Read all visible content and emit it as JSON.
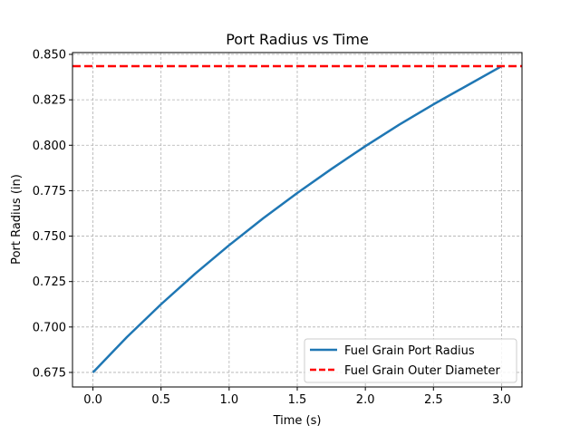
{
  "chart_data": {
    "type": "line",
    "title": "Port Radius vs Time",
    "xlabel": "Time (s)",
    "ylabel": "Port Radius (in)",
    "xlim": [
      -0.15,
      3.15
    ],
    "ylim": [
      0.667,
      0.851
    ],
    "xticks": [
      "0.0",
      "0.5",
      "1.0",
      "1.5",
      "2.0",
      "2.5",
      "3.0"
    ],
    "yticks": [
      "0.675",
      "0.700",
      "0.725",
      "0.750",
      "0.775",
      "0.800",
      "0.825",
      "0.850"
    ],
    "grid": true,
    "legend_position": "lower-right",
    "series": [
      {
        "name": "Fuel Grain Port Radius",
        "style": "solid",
        "color": "#1f77b4",
        "x": [
          0.0,
          0.25,
          0.5,
          0.75,
          1.0,
          1.25,
          1.5,
          1.75,
          2.0,
          2.25,
          2.5,
          2.75,
          3.0
        ],
        "y": [
          0.675,
          0.6945,
          0.7125,
          0.7293,
          0.745,
          0.7598,
          0.7737,
          0.7869,
          0.7995,
          0.8114,
          0.8225,
          0.833,
          0.8435
        ]
      },
      {
        "name": "Fuel Grain Outer Diameter",
        "style": "dashed",
        "color": "#ff0000",
        "x": [
          -0.15,
          3.15
        ],
        "y": [
          0.8435,
          0.8435
        ]
      }
    ]
  }
}
